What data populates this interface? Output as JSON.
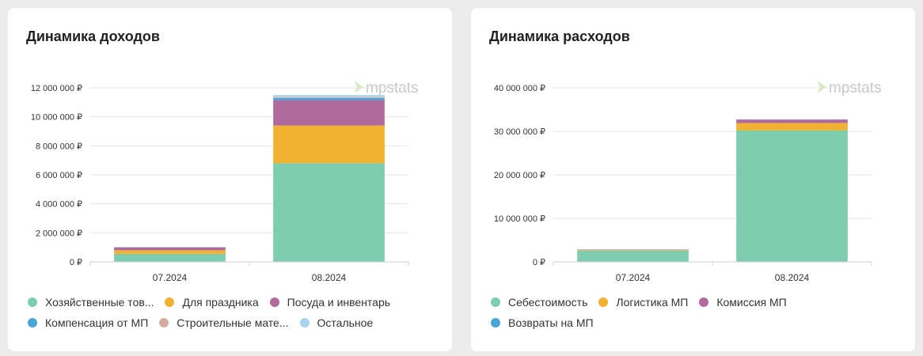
{
  "income_card": {
    "title": "Динамика доходов",
    "watermark": "mpstats"
  },
  "expense_card": {
    "title": "Динамика расходов",
    "watermark": "mpstats"
  },
  "chart_data": [
    {
      "type": "bar",
      "stacked": true,
      "title": "Динамика доходов",
      "categories": [
        "07.2024",
        "08.2024"
      ],
      "ylim": [
        0,
        12000000
      ],
      "yticks": [
        0,
        2000000,
        4000000,
        6000000,
        8000000,
        10000000,
        12000000
      ],
      "ytick_labels": [
        "0 ₽",
        "2 000 000 ₽",
        "4 000 000 ₽",
        "6 000 000 ₽",
        "8 000 000 ₽",
        "10 000 000 ₽",
        "12 000 000 ₽"
      ],
      "grid": true,
      "legend_position": "bottom",
      "series": [
        {
          "name": "Хозяйственные тов...",
          "color": "#7dcdb0",
          "values": [
            550000,
            6800000
          ]
        },
        {
          "name": "Для праздника",
          "color": "#f2b130",
          "values": [
            250000,
            2600000
          ]
        },
        {
          "name": "Посуда и инвентарь",
          "color": "#b06b9c",
          "values": [
            200000,
            1750000
          ]
        },
        {
          "name": "Компенсация от МП",
          "color": "#4aa3d9",
          "values": [
            10000,
            150000
          ]
        },
        {
          "name": "Строительные мате...",
          "color": "#d2ada0",
          "values": [
            5000,
            60000
          ]
        },
        {
          "name": "Остальное",
          "color": "#aad4ee",
          "values": [
            5000,
            140000
          ]
        }
      ]
    },
    {
      "type": "bar",
      "stacked": true,
      "title": "Динамика расходов",
      "categories": [
        "07.2024",
        "08.2024"
      ],
      "ylim": [
        0,
        40000000
      ],
      "yticks": [
        0,
        10000000,
        20000000,
        30000000,
        40000000
      ],
      "ytick_labels": [
        "0 ₽",
        "10 000 000 ₽",
        "20 000 000 ₽",
        "30 000 000 ₽",
        "40 000 000 ₽"
      ],
      "grid": true,
      "legend_position": "bottom",
      "series": [
        {
          "name": "Себестоимость",
          "color": "#7dcdb0",
          "values": [
            2600000,
            30200000
          ]
        },
        {
          "name": "Логистика МП",
          "color": "#f2b130",
          "values": [
            150000,
            1700000
          ]
        },
        {
          "name": "Комиссия МП",
          "color": "#b06b9c",
          "values": [
            80000,
            800000
          ]
        },
        {
          "name": "Возвраты на МП",
          "color": "#4aa3d9",
          "values": [
            10000,
            50000
          ]
        }
      ]
    }
  ]
}
